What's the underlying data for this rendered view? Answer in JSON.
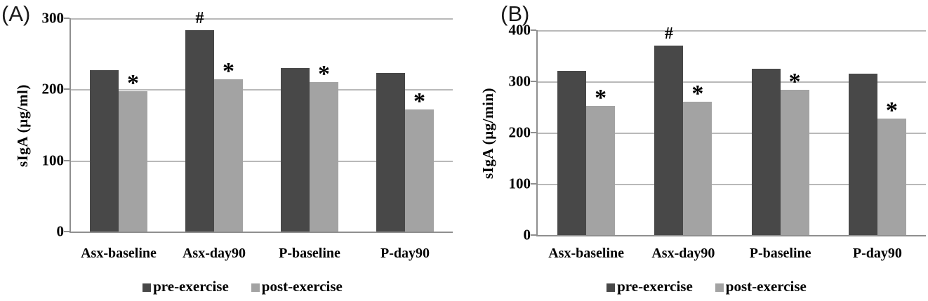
{
  "colors": {
    "pre_bar": "#484848",
    "post_bar": "#a3a3a3",
    "gridline": "#b9b9b9",
    "axis": "#8f8f8f",
    "text": "#000000"
  },
  "chart_data": [
    {
      "type": "bar",
      "panel_label": "(A)",
      "title": "",
      "xlabel": "",
      "ylabel": "sIgA (µg/ml)",
      "ylim": [
        0,
        300
      ],
      "yticks": [
        0,
        100,
        200,
        300
      ],
      "grid": true,
      "legend_position": "bottom",
      "categories": [
        "Asx-baseline",
        "Asx-day90",
        "P-baseline",
        "P-day90"
      ],
      "series": [
        {
          "name": "pre-exercise",
          "color": "#484848",
          "values": [
            227,
            283,
            230,
            223
          ],
          "markers": [
            "",
            "#",
            "",
            ""
          ]
        },
        {
          "name": "post-exercise",
          "color": "#a3a3a3",
          "values": [
            197,
            214,
            210,
            172
          ],
          "markers": [
            "*",
            "*",
            "*",
            "*"
          ]
        }
      ]
    },
    {
      "type": "bar",
      "panel_label": "(B)",
      "title": "",
      "xlabel": "",
      "ylabel": "sIgA (µg/min)",
      "ylim": [
        0,
        400
      ],
      "yticks": [
        0,
        100,
        200,
        300,
        400
      ],
      "grid": true,
      "legend_position": "bottom",
      "categories": [
        "Asx-baseline",
        "Asx-day90",
        "P-baseline",
        "P-day90"
      ],
      "series": [
        {
          "name": "pre-exercise",
          "color": "#484848",
          "values": [
            320,
            370,
            325,
            315
          ],
          "markers": [
            "",
            "#",
            "",
            ""
          ]
        },
        {
          "name": "post-exercise",
          "color": "#a3a3a3",
          "values": [
            252,
            260,
            283,
            227
          ],
          "markers": [
            "*",
            "*",
            "*",
            "*"
          ]
        }
      ]
    }
  ]
}
